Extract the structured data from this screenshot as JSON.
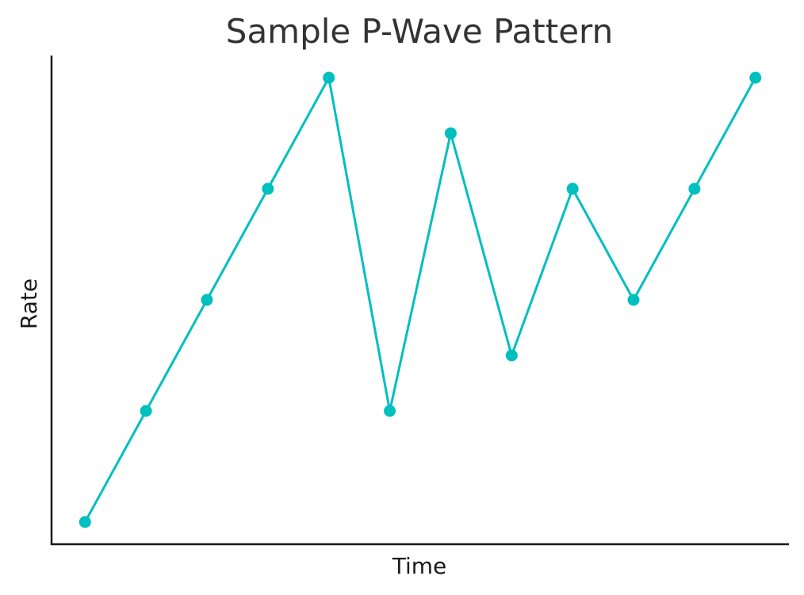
{
  "chart_data": {
    "type": "line",
    "title": "Sample P-Wave Pattern",
    "xlabel": "Time",
    "ylabel": "Rate",
    "x": [
      1,
      2,
      3,
      4,
      5,
      6,
      7,
      8,
      9,
      10,
      11,
      12
    ],
    "series": [
      {
        "values": [
          1,
          3,
          5,
          7,
          9,
          3,
          8,
          4,
          7,
          5,
          7,
          9
        ],
        "color": "#00BFBF"
      }
    ],
    "xlim": [
      0.45,
      12.55
    ],
    "ylim": [
      0.6,
      9.4
    ],
    "xticks_visible": false,
    "yticks_visible": false,
    "grid": false,
    "legend": false
  }
}
